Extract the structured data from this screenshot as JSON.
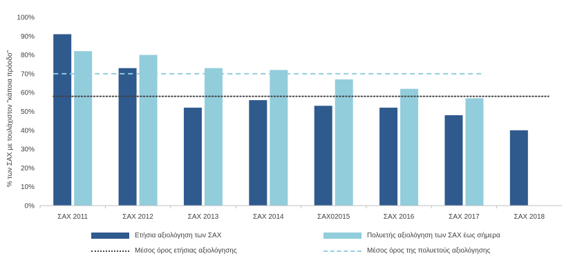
{
  "chart_data": {
    "type": "bar",
    "categories": [
      "ΣΑΧ 2011",
      "ΣΑΧ 2012",
      "ΣΑΧ 2013",
      "ΣΑΧ 2014",
      "ΣΑΧ02015",
      "ΣΑΧ 2016",
      "ΣΑΧ 2017",
      "ΣΑΧ 2018"
    ],
    "series": [
      {
        "name": "Ετήσια αξιολόγηση των ΣΑΧ",
        "color": "#2f5a8e",
        "values": [
          91,
          73,
          52,
          56,
          53,
          52,
          48,
          40
        ]
      },
      {
        "name": "Πολυετής αξιολόγηση των ΣΑΧ έως σήμερα",
        "color": "#92cddc",
        "values": [
          82,
          80,
          73,
          72,
          67,
          62,
          57,
          null
        ]
      }
    ],
    "reference_lines": [
      {
        "name": "Μέσος όρος ετήσιας αξιολόγησης",
        "value": 58,
        "style": "dotted",
        "color": "#404040",
        "from_category": 0,
        "to_category": 7
      },
      {
        "name": "Μέσος όρος της πολυετούς αξιολόγησης",
        "value": 70,
        "style": "dashed",
        "color": "#92cddc",
        "from_category": 0,
        "to_category": 6
      }
    ],
    "ylabel": "% των ΣΑΧ με τουλάχιστον \"κάποια πρόοδο\"",
    "ylim": [
      0,
      100
    ],
    "yticks": [
      "0%",
      "10%",
      "20%",
      "30%",
      "40%",
      "50%",
      "60%",
      "70%",
      "80%",
      "90%",
      "100%"
    ],
    "grid": false,
    "legend_position": "bottom"
  }
}
